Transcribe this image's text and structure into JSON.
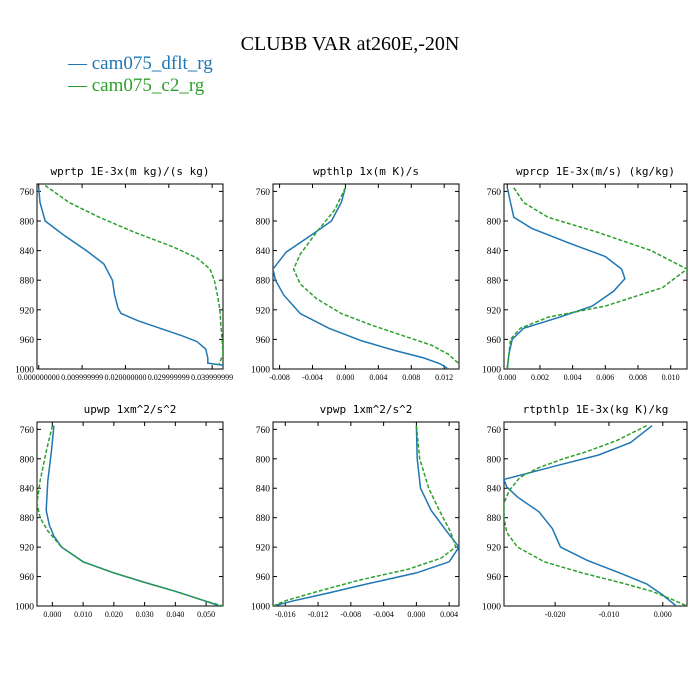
{
  "figure": {
    "title": "CLUBB VAR at260E,-20N",
    "legend": [
      {
        "label": "cam075_dflt_rg",
        "color": "#1f77b4"
      },
      {
        "label": "cam075_c2_rg",
        "color": "#2ca02c"
      }
    ]
  },
  "chart_data": [
    {
      "type": "line",
      "title": "wprtp  1E-3x(m kg)/(s kg)",
      "ylim": [
        1000,
        750
      ],
      "yticks": [
        "760",
        "800",
        "840",
        "880",
        "920",
        "960",
        "1000"
      ],
      "yticks_values": [
        760,
        800,
        840,
        880,
        920,
        960,
        1000
      ],
      "xlim": [
        -4e-07,
        4.25e-05
      ],
      "xticks": [
        "0.000000000",
        "0.009999999",
        "0.020000000",
        "0.029999999",
        "0.039999999"
      ],
      "xticks_values": [
        0,
        1e-05,
        2e-05,
        3e-05,
        4e-05
      ],
      "series": [
        {
          "name": "cam075_dflt_rg",
          "color": "#1f77b4",
          "dash": "",
          "points": [
            [
              0,
              755
            ],
            [
              3e-07,
              775
            ],
            [
              1.5e-06,
              800
            ],
            [
              6e-06,
              820
            ],
            [
              1.1e-05,
              840
            ],
            [
              1.5e-05,
              858
            ],
            [
              1.7e-05,
              880
            ],
            [
              1.75e-05,
              900
            ],
            [
              1.83e-05,
              918
            ],
            [
              1.9e-05,
              925
            ],
            [
              2.3e-05,
              935
            ],
            [
              2.8e-05,
              945
            ],
            [
              3.3e-05,
              955
            ],
            [
              3.65e-05,
              963
            ],
            [
              3.85e-05,
              973
            ],
            [
              3.9e-05,
              985
            ],
            [
              3.9e-05,
              992
            ],
            [
              4.25e-05,
              995
            ]
          ]
        },
        {
          "name": "cam075_c2_rg",
          "color": "#2ca02c",
          "dash": "4 2",
          "points": [
            [
              1.5e-06,
              752
            ],
            [
              7e-06,
              775
            ],
            [
              1.4e-05,
              795
            ],
            [
              2.2e-05,
              815
            ],
            [
              3.1e-05,
              835
            ],
            [
              3.65e-05,
              850
            ],
            [
              3.95e-05,
              865
            ],
            [
              4.05e-05,
              880
            ],
            [
              4.12e-05,
              900
            ],
            [
              4.18e-05,
              920
            ],
            [
              4.2e-05,
              940
            ],
            [
              4.23e-05,
              960
            ],
            [
              4.25e-05,
              980
            ],
            [
              4.15e-05,
              995
            ]
          ]
        }
      ]
    },
    {
      "type": "line",
      "title": "wpthlp  1x(m K)/s",
      "ylim": [
        1000,
        750
      ],
      "yticks": [
        "760",
        "800",
        "840",
        "880",
        "920",
        "960",
        "1000"
      ],
      "yticks_values": [
        760,
        800,
        840,
        880,
        920,
        960,
        1000
      ],
      "xlim": [
        -0.0088,
        0.0138
      ],
      "xticks": [
        "-0.008",
        "-0.004",
        "0.000",
        "0.004",
        "0.008",
        "0.012"
      ],
      "xticks_values": [
        -0.008,
        -0.004,
        0,
        0.004,
        0.008,
        0.012
      ],
      "series": [
        {
          "name": "cam075_dflt_rg",
          "color": "#1f77b4",
          "dash": "",
          "points": [
            [
              0.0,
              755
            ],
            [
              -0.0005,
              775
            ],
            [
              -0.0017,
              800
            ],
            [
              -0.004,
              818
            ],
            [
              -0.0072,
              842
            ],
            [
              -0.0088,
              865
            ],
            [
              -0.0085,
              880
            ],
            [
              -0.0075,
              900
            ],
            [
              -0.0055,
              925
            ],
            [
              -0.002,
              945
            ],
            [
              0.002,
              962
            ],
            [
              0.006,
              975
            ],
            [
              0.0095,
              985
            ],
            [
              0.0115,
              993
            ],
            [
              0.0125,
              1000
            ]
          ]
        },
        {
          "name": "cam075_c2_rg",
          "color": "#2ca02c",
          "dash": "4 2",
          "points": [
            [
              0.0,
              755
            ],
            [
              -0.0013,
              785
            ],
            [
              -0.0035,
              815
            ],
            [
              -0.0055,
              845
            ],
            [
              -0.0063,
              865
            ],
            [
              -0.0055,
              885
            ],
            [
              -0.0035,
              905
            ],
            [
              -0.0005,
              925
            ],
            [
              0.003,
              940
            ],
            [
              0.007,
              955
            ],
            [
              0.0105,
              968
            ],
            [
              0.0125,
              980
            ],
            [
              0.0138,
              993
            ]
          ]
        }
      ]
    },
    {
      "type": "line",
      "title": "wprcp  1E-3x(m/s) (kg/kg)",
      "ylim": [
        1000,
        750
      ],
      "yticks": [
        "760",
        "800",
        "840",
        "880",
        "920",
        "960",
        "1000"
      ],
      "yticks_values": [
        760,
        800,
        840,
        880,
        920,
        960,
        1000
      ],
      "xlim": [
        -0.0002,
        0.011
      ],
      "xticks": [
        "0.000",
        "0.002",
        "0.004",
        "0.006",
        "0.008",
        "0.010"
      ],
      "xticks_values": [
        0,
        0.002,
        0.004,
        0.006,
        0.008,
        0.01
      ],
      "series": [
        {
          "name": "cam075_dflt_rg",
          "color": "#1f77b4",
          "dash": "",
          "points": [
            [
              0.0,
              755
            ],
            [
              0.0002,
              775
            ],
            [
              0.0004,
              795
            ],
            [
              0.0015,
              810
            ],
            [
              0.0038,
              830
            ],
            [
              0.006,
              848
            ],
            [
              0.007,
              865
            ],
            [
              0.0072,
              878
            ],
            [
              0.0065,
              895
            ],
            [
              0.0052,
              915
            ],
            [
              0.0032,
              930
            ],
            [
              0.001,
              945
            ],
            [
              0.0003,
              960
            ],
            [
              0.0001,
              980
            ],
            [
              0.0,
              1000
            ]
          ]
        },
        {
          "name": "cam075_c2_rg",
          "color": "#2ca02c",
          "dash": "4 2",
          "points": [
            [
              0.0004,
              755
            ],
            [
              0.001,
              775
            ],
            [
              0.0025,
              795
            ],
            [
              0.0055,
              815
            ],
            [
              0.0088,
              840
            ],
            [
              0.011,
              865
            ],
            [
              0.0095,
              890
            ],
            [
              0.006,
              915
            ],
            [
              0.0025,
              930
            ],
            [
              0.0008,
              945
            ],
            [
              0.0002,
              960
            ],
            [
              0.0001,
              980
            ],
            [
              0.0,
              1000
            ]
          ]
        }
      ]
    },
    {
      "type": "line",
      "title": "upwp  1xm^2/s^2",
      "ylim": [
        1000,
        750
      ],
      "yticks": [
        "760",
        "800",
        "840",
        "880",
        "920",
        "960",
        "1000"
      ],
      "yticks_values": [
        760,
        800,
        840,
        880,
        920,
        960,
        1000
      ],
      "xlim": [
        -0.005,
        0.0555
      ],
      "xticks": [
        "0.000",
        "0.010",
        "0.020",
        "0.030",
        "0.040",
        "0.050"
      ],
      "xticks_values": [
        0,
        0.01,
        0.02,
        0.03,
        0.04,
        0.05
      ],
      "series": [
        {
          "name": "cam075_dflt_rg",
          "color": "#1f77b4",
          "dash": "",
          "points": [
            [
              0.0005,
              755
            ],
            [
              -0.0003,
              790
            ],
            [
              -0.0015,
              830
            ],
            [
              -0.002,
              870
            ],
            [
              -0.001,
              890
            ],
            [
              0.0005,
              905
            ],
            [
              0.003,
              920
            ],
            [
              0.01,
              940
            ],
            [
              0.02,
              955
            ],
            [
              0.03,
              968
            ],
            [
              0.04,
              980
            ],
            [
              0.0495,
              993
            ],
            [
              0.0545,
              1000
            ]
          ]
        },
        {
          "name": "cam075_c2_rg",
          "color": "#2ca02c",
          "dash": "4 2",
          "points": [
            [
              0.0,
              755
            ],
            [
              -0.002,
              790
            ],
            [
              -0.004,
              830
            ],
            [
              -0.005,
              860
            ],
            [
              -0.004,
              880
            ],
            [
              -0.0015,
              898
            ],
            [
              0.003,
              920
            ],
            [
              0.01,
              940
            ],
            [
              0.02,
              955
            ],
            [
              0.03,
              968
            ],
            [
              0.04,
              980
            ],
            [
              0.0495,
              993
            ],
            [
              0.0555,
              1000
            ]
          ]
        }
      ]
    },
    {
      "type": "line",
      "title": "vpwp  1xm^2/s^2",
      "ylim": [
        1000,
        750
      ],
      "yticks": [
        "760",
        "800",
        "840",
        "880",
        "920",
        "960",
        "1000"
      ],
      "yticks_values": [
        760,
        800,
        840,
        880,
        920,
        960,
        1000
      ],
      "xlim": [
        -0.0175,
        0.0052
      ],
      "xticks": [
        "-0.016",
        "-0.012",
        "-0.008",
        "-0.004",
        "0.000",
        "0.004"
      ],
      "xticks_values": [
        -0.016,
        -0.012,
        -0.008,
        -0.004,
        0,
        0.004
      ],
      "series": [
        {
          "name": "cam075_dflt_rg",
          "color": "#1f77b4",
          "dash": "",
          "points": [
            [
              0.0,
              755
            ],
            [
              0.0001,
              800
            ],
            [
              0.0005,
              840
            ],
            [
              0.0018,
              870
            ],
            [
              0.0038,
              900
            ],
            [
              0.0052,
              920
            ],
            [
              0.004,
              940
            ],
            [
              0.0,
              955
            ],
            [
              -0.006,
              970
            ],
            [
              -0.011,
              983
            ],
            [
              -0.015,
              993
            ],
            [
              -0.0175,
              1000
            ]
          ]
        },
        {
          "name": "cam075_c2_rg",
          "color": "#2ca02c",
          "dash": "4 2",
          "points": [
            [
              0.0,
              755
            ],
            [
              0.0004,
              800
            ],
            [
              0.0015,
              840
            ],
            [
              0.0028,
              870
            ],
            [
              0.0042,
              900
            ],
            [
              0.0048,
              920
            ],
            [
              0.003,
              935
            ],
            [
              -0.001,
              950
            ],
            [
              -0.007,
              965
            ],
            [
              -0.012,
              980
            ],
            [
              -0.016,
              993
            ],
            [
              -0.0175,
              1000
            ]
          ]
        }
      ]
    },
    {
      "type": "line",
      "title": "rtpthlp  1E-3x(kg K)/kg",
      "ylim": [
        1000,
        750
      ],
      "yticks": [
        "760",
        "800",
        "840",
        "880",
        "920",
        "960",
        "1000"
      ],
      "yticks_values": [
        760,
        800,
        840,
        880,
        920,
        960,
        1000
      ],
      "xlim": [
        -0.0295,
        0.0045
      ],
      "xticks": [
        "-0.020",
        "-0.010",
        "0.000"
      ],
      "xticks_values": [
        -0.02,
        -0.01,
        0
      ],
      "series": [
        {
          "name": "cam075_dflt_rg",
          "color": "#1f77b4",
          "dash": "",
          "points": [
            [
              -0.002,
              755
            ],
            [
              -0.006,
              778
            ],
            [
              -0.012,
              795
            ],
            [
              -0.019,
              808
            ],
            [
              -0.0295,
              828
            ],
            [
              -0.029,
              838
            ],
            [
              -0.027,
              852
            ],
            [
              -0.023,
              872
            ],
            [
              -0.0205,
              895
            ],
            [
              -0.019,
              920
            ],
            [
              -0.014,
              938
            ],
            [
              -0.008,
              955
            ],
            [
              -0.003,
              970
            ],
            [
              0.0,
              985
            ],
            [
              0.0025,
              1000
            ]
          ]
        },
        {
          "name": "cam075_c2_rg",
          "color": "#2ca02c",
          "dash": "4 2",
          "points": [
            [
              -0.003,
              755
            ],
            [
              -0.0085,
              775
            ],
            [
              -0.014,
              790
            ],
            [
              -0.0185,
              800
            ],
            [
              -0.023,
              812
            ],
            [
              -0.0265,
              825
            ],
            [
              -0.0285,
              843
            ],
            [
              -0.0295,
              860
            ],
            [
              -0.0295,
              880
            ],
            [
              -0.029,
              900
            ],
            [
              -0.027,
              920
            ],
            [
              -0.022,
              940
            ],
            [
              -0.015,
              955
            ],
            [
              -0.008,
              968
            ],
            [
              -0.002,
              980
            ],
            [
              0.002,
              992
            ],
            [
              0.0045,
              1000
            ]
          ]
        }
      ]
    }
  ]
}
